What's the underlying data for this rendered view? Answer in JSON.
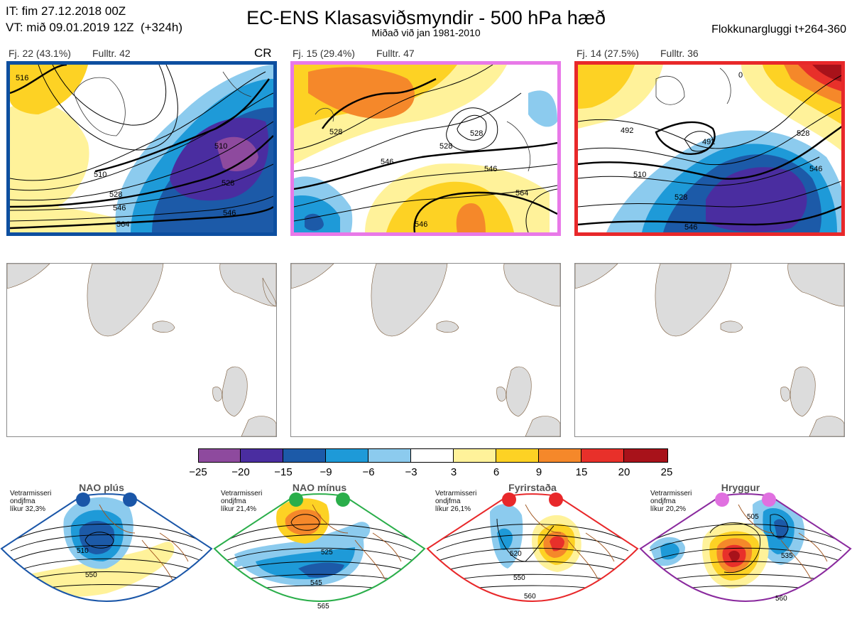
{
  "header": {
    "it_line": "IT: fim 27.12.2018 00Z",
    "vt_line": "VT: mið 09.01.2019 12Z  (+324h)",
    "title": "EC-ENS Klasasviðsmyndir - 500 hPa hæð",
    "subtitle": "Miðað við jan 1981-2010",
    "window": "Flokkunargluggi t+264-360"
  },
  "panels": [
    {
      "count_label": "Fj. 22 (43.1%)",
      "rep_label": "Fulltr. 42",
      "tag": "CR",
      "frame_color": "#0d4fa0",
      "contour_labels": [
        "510",
        "510",
        "528",
        "546",
        "564",
        "528",
        "546",
        "516"
      ]
    },
    {
      "count_label": "Fj. 15 (29.4%)",
      "rep_label": "Fulltr. 47",
      "tag": "",
      "frame_color": "#e879e8",
      "contour_labels": [
        "528",
        "546",
        "528",
        "564",
        "546",
        "528",
        "546"
      ]
    },
    {
      "count_label": "Fj. 14 (27.5%)",
      "rep_label": "Fulltr. 36",
      "tag": "",
      "frame_color": "#e8282a",
      "contour_labels": [
        "492",
        "492",
        "510",
        "528",
        "528",
        "546",
        "546",
        "0"
      ]
    }
  ],
  "colorbar": {
    "colors": [
      "#8e4a9e",
      "#4a2da0",
      "#1c5aa8",
      "#1e9ad8",
      "#8ccbee",
      "#ffffff",
      "#fff29a",
      "#fdd224",
      "#f5882a",
      "#e8302a",
      "#a8121a"
    ],
    "ticks": [
      "−25",
      "−20",
      "−15",
      "−9",
      "−6",
      "−3",
      "3",
      "6",
      "9",
      "15",
      "20",
      "25"
    ]
  },
  "regimes": [
    {
      "name": "NAO plús",
      "note": [
        "Vetrarmisseri",
        "ondjfma",
        "líkur 32,3%"
      ],
      "color": "#1a56a8",
      "contour_labels": [
        "510",
        "550"
      ]
    },
    {
      "name": "NAO mínus",
      "note": [
        "Vetrarmisseri",
        "ondjfma",
        "líkur 21,4%"
      ],
      "color": "#2aae4a",
      "contour_labels": [
        "525",
        "545",
        "565"
      ]
    },
    {
      "name": "Fyrirstaða",
      "note": [
        "Vetrarmisseri",
        "ondjfma",
        "líkur 26,1%"
      ],
      "color": "#e8282a",
      "contour_labels": [
        "520",
        "550",
        "560"
      ]
    },
    {
      "name": "Hryggur",
      "note": [
        "Vetrarmisseri",
        "ondjfma",
        "líkur 20,2%"
      ],
      "color": "#e070e0",
      "frame_color": "#8a2a9e",
      "contour_labels": [
        "505",
        "535",
        "560"
      ]
    }
  ]
}
